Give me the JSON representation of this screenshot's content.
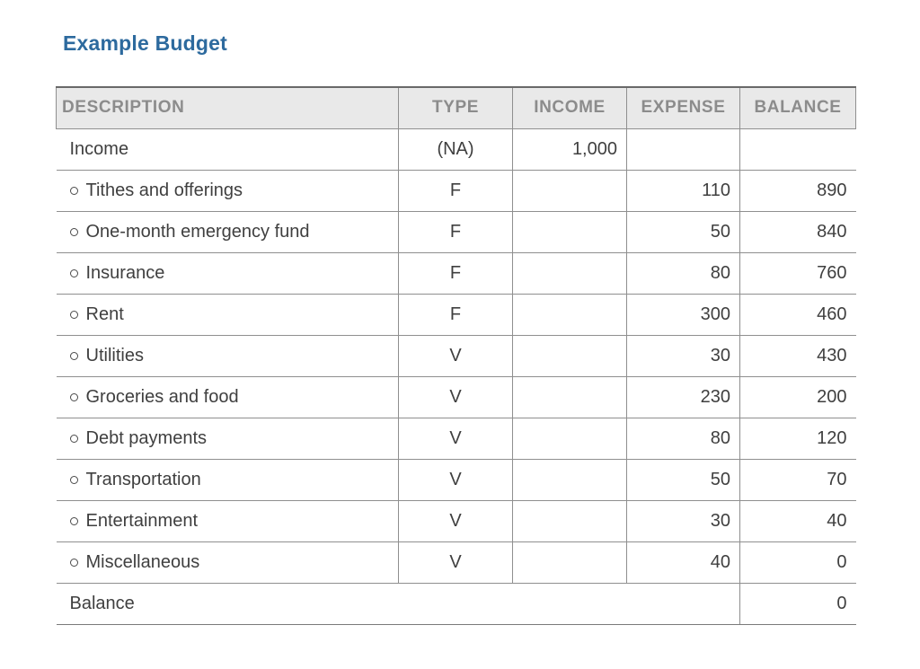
{
  "page": {
    "title": "Example Budget"
  },
  "colors": {
    "title": "#2d6a9e",
    "header_text": "#8c8c8c",
    "header_bg": "#e9e9e9",
    "body_text": "#3f3f3f",
    "border": "#8f8f8f"
  },
  "table": {
    "columns": [
      "DESCRIPTION",
      "TYPE",
      "INCOME",
      "EXPENSE",
      "BALANCE"
    ],
    "rows": [
      {
        "description": "Income",
        "type": "(NA)",
        "income": "1,000",
        "expense": "",
        "balance": ""
      },
      {
        "description": "Tithes and offerings",
        "type": "F",
        "income": "",
        "expense": "110",
        "balance": "890"
      },
      {
        "description": "One-month emergency fund",
        "type": "F",
        "income": "",
        "expense": "50",
        "balance": "840"
      },
      {
        "description": "Insurance",
        "type": "F",
        "income": "",
        "expense": "80",
        "balance": "760"
      },
      {
        "description": "Rent",
        "type": "F",
        "income": "",
        "expense": "300",
        "balance": "460"
      },
      {
        "description": "Utilities",
        "type": "V",
        "income": "",
        "expense": "30",
        "balance": "430"
      },
      {
        "description": "Groceries and food",
        "type": "V",
        "income": "",
        "expense": "230",
        "balance": "200"
      },
      {
        "description": "Debt payments",
        "type": "V",
        "income": "",
        "expense": "80",
        "balance": "120"
      },
      {
        "description": "Transportation",
        "type": "V",
        "income": "",
        "expense": "50",
        "balance": "70"
      },
      {
        "description": "Entertainment",
        "type": "V",
        "income": "",
        "expense": "30",
        "balance": "40"
      },
      {
        "description": "Miscellaneous",
        "type": "V",
        "income": "",
        "expense": "40",
        "balance": "0"
      }
    ],
    "footer": {
      "label": "Balance",
      "balance": "0"
    }
  }
}
